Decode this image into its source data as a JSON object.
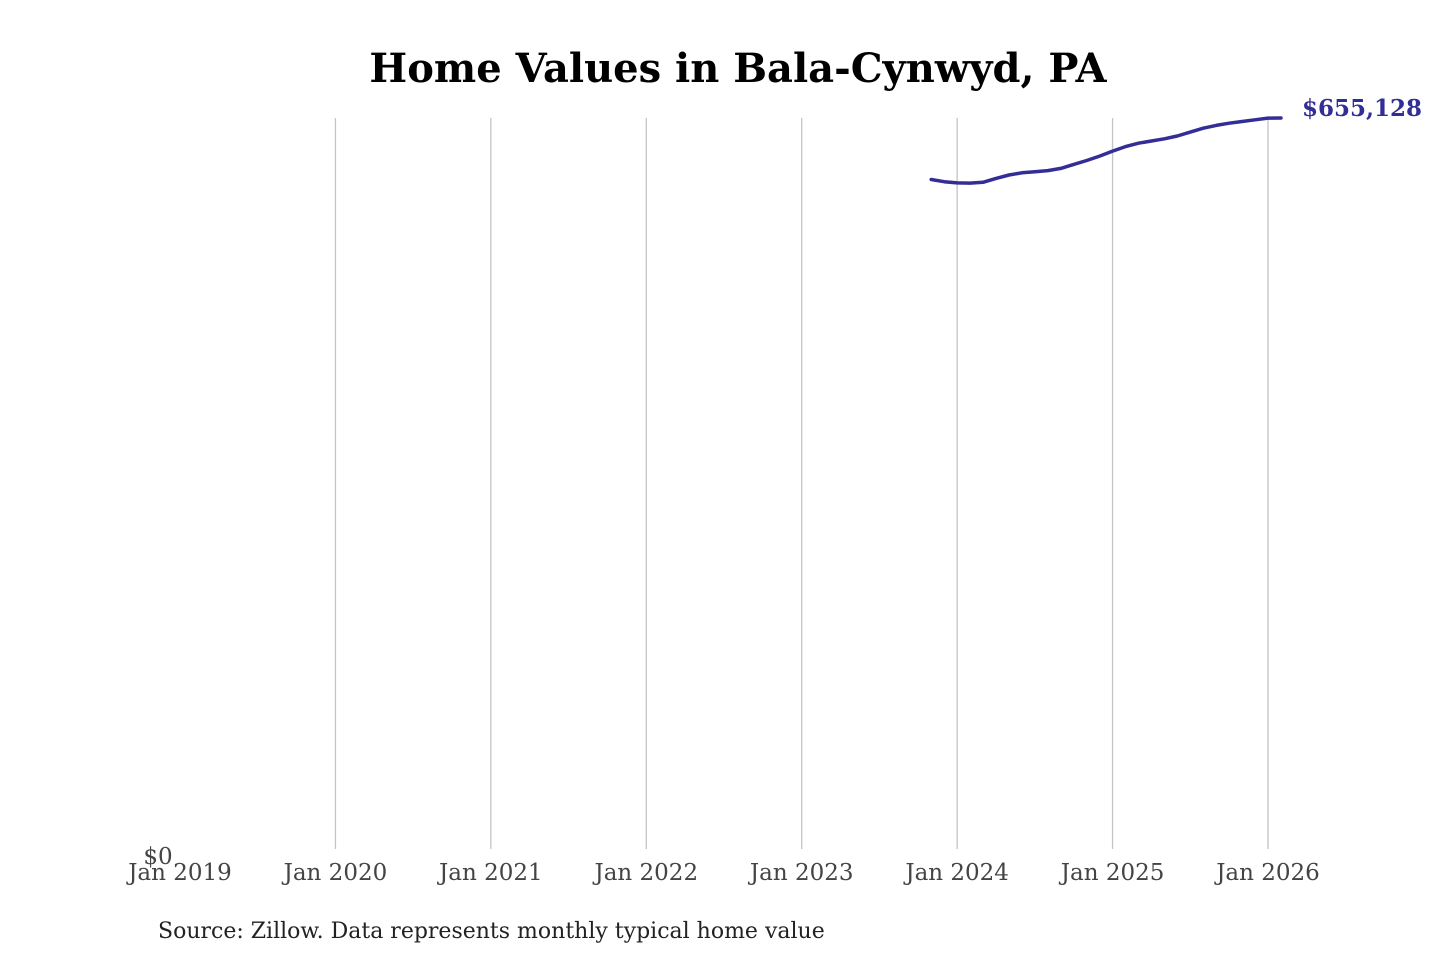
{
  "chart_data": {
    "type": "line",
    "title": "Home Values in Bala-Cynwyd, PA",
    "xlabel": "",
    "ylabel": "",
    "x_ticks": [
      "Jan 2019",
      "Jan 2020",
      "Jan 2021",
      "Jan 2022",
      "Jan 2023",
      "Jan 2024",
      "Jan 2025",
      "Jan 2026"
    ],
    "y_ticks": [
      "$0"
    ],
    "xlim": [
      "2019-01",
      "2026-01"
    ],
    "ylim": [
      0,
      655128
    ],
    "grid": "vertical",
    "line_color": "#332e96",
    "end_label": "$655,128",
    "series": [
      {
        "x": [
          "2023-11",
          "2023-12",
          "2024-01",
          "2024-02",
          "2024-03",
          "2024-04",
          "2024-05",
          "2024-06",
          "2024-07",
          "2024-08",
          "2024-09",
          "2024-10",
          "2024-11",
          "2024-12",
          "2025-01",
          "2025-02",
          "2025-03",
          "2025-04",
          "2025-05",
          "2025-06",
          "2025-07",
          "2025-08",
          "2025-09",
          "2025-10",
          "2025-11",
          "2025-12",
          "2026-01",
          "2026-02"
        ],
        "y": [
          600000,
          598000,
          597000,
          596800,
          597500,
          601000,
          604000,
          606000,
          607000,
          608000,
          610000,
          613500,
          617000,
          621000,
          625500,
          629500,
          632500,
          634500,
          636500,
          639000,
          642500,
          646000,
          648500,
          650500,
          652000,
          653500,
          655000,
          655128
        ]
      }
    ],
    "source": "Source: Zillow. Data represents monthly typical home value"
  }
}
